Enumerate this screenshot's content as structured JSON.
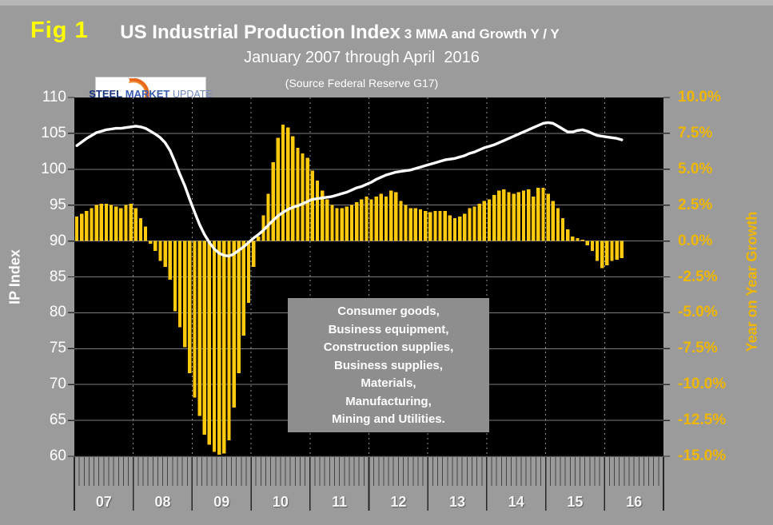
{
  "fig_label": "Fig 1",
  "title": {
    "main": "US Industrial Production Index",
    "suffix": " 3 MMA and Growth Y / Y",
    "date_range": "January 2007 through April  2016",
    "source": "(Source Federal Reserve G17)"
  },
  "logo": {
    "word1": "STEEL",
    "word2": "MARKET",
    "word3": "UPDATE"
  },
  "axes": {
    "left": {
      "label": "IP Index",
      "ticks": [
        "110",
        "105",
        "100",
        "95",
        "90",
        "85",
        "80",
        "75",
        "70",
        "65",
        "60"
      ]
    },
    "right": {
      "label": "Year on Year Growth",
      "ticks": [
        "10.0%",
        "7.5%",
        "5.0%",
        "2.5%",
        "0.0%",
        "-2.5%",
        "-5.0%",
        "-7.5%",
        "-10.0%",
        "-12.5%",
        "-15.0%"
      ]
    },
    "x": {
      "years": [
        "07",
        "08",
        "09",
        "10",
        "11",
        "12",
        "13",
        "14",
        "15",
        "16"
      ]
    }
  },
  "annotation_box": {
    "lines": [
      "Consumer goods,",
      "Business equipment,",
      "Construction supplies,",
      "Business supplies,",
      "Materials,",
      "Manufacturing,",
      "Mining and Utilities."
    ]
  },
  "colors": {
    "background": "#9b9b9b",
    "plot_background": "#000000",
    "bar": "#ffc90e",
    "line": "#ffffff",
    "gridline": "#7d7d7d",
    "year_gridline": "#8f8f8f",
    "right_axis_text": "#efb700",
    "fig_label_text": "#ffff00",
    "tick": "#2e2e2e"
  },
  "chart_data": {
    "type": "combo (bar + line)",
    "x_start": "2007-01",
    "x_end": "2016-04",
    "x_frequency": "monthly",
    "x_axis_span": [
      "2007-01",
      "2016-12"
    ],
    "title": "US Industrial Production Index 3 MMA and Growth Y / Y",
    "left_axis": {
      "label": "IP Index",
      "ylim": [
        60,
        110
      ]
    },
    "right_axis": {
      "label": "Year on Year Growth",
      "ylim": [
        -15.0,
        10.0
      ],
      "unit": "%"
    },
    "grid": "horizontal solid + vertical dashed at year boundaries",
    "series": [
      {
        "name": "Growth Y/Y",
        "type": "bar",
        "axis": "right",
        "unit": "%",
        "values": [
          1.7,
          1.9,
          2.1,
          2.3,
          2.5,
          2.6,
          2.6,
          2.5,
          2.4,
          2.3,
          2.5,
          2.6,
          2.3,
          1.6,
          1.0,
          -0.2,
          -0.7,
          -1.4,
          -1.8,
          -2.7,
          -4.9,
          -6.0,
          -7.4,
          -9.2,
          -10.9,
          -12.2,
          -13.5,
          -14.2,
          -14.7,
          -14.9,
          -14.8,
          -13.9,
          -11.6,
          -9.2,
          -6.6,
          -4.3,
          -1.8,
          0.3,
          1.8,
          3.3,
          5.5,
          7.2,
          8.1,
          7.9,
          7.3,
          6.5,
          6.1,
          5.8,
          4.9,
          4.2,
          3.5,
          2.9,
          2.5,
          2.3,
          2.3,
          2.4,
          2.5,
          2.7,
          2.9,
          3.1,
          2.9,
          3.1,
          3.3,
          3.1,
          3.5,
          3.4,
          2.8,
          2.5,
          2.3,
          2.3,
          2.2,
          2.1,
          2.0,
          2.1,
          2.1,
          2.1,
          1.8,
          1.6,
          1.7,
          1.9,
          2.3,
          2.4,
          2.6,
          2.8,
          2.9,
          3.2,
          3.5,
          3.6,
          3.4,
          3.3,
          3.4,
          3.5,
          3.6,
          3.1,
          3.7,
          3.7,
          3.3,
          2.8,
          2.3,
          1.6,
          0.8,
          0.3,
          0.2,
          0.1,
          -0.3,
          -0.7,
          -1.4,
          -1.9,
          -1.7,
          -1.4,
          -1.3,
          -1.2
        ]
      },
      {
        "name": "IP Index 3 MMA",
        "type": "line",
        "axis": "left",
        "values": [
          103.3,
          103.8,
          104.3,
          104.7,
          105.1,
          105.3,
          105.5,
          105.6,
          105.7,
          105.7,
          105.8,
          105.9,
          106.0,
          105.9,
          105.7,
          105.3,
          104.9,
          104.4,
          103.7,
          102.6,
          101.0,
          99.3,
          97.7,
          95.8,
          94.0,
          92.3,
          90.9,
          89.8,
          88.9,
          88.3,
          88.0,
          87.9,
          88.2,
          88.7,
          89.2,
          89.8,
          90.4,
          90.9,
          91.5,
          92.2,
          92.9,
          93.5,
          94.0,
          94.4,
          94.7,
          94.9,
          95.2,
          95.5,
          95.8,
          95.9,
          96.0,
          96.1,
          96.2,
          96.4,
          96.6,
          96.8,
          97.1,
          97.4,
          97.6,
          97.9,
          98.2,
          98.6,
          98.9,
          99.2,
          99.4,
          99.6,
          99.7,
          99.8,
          99.9,
          100.1,
          100.3,
          100.5,
          100.7,
          100.9,
          101.1,
          101.3,
          101.4,
          101.5,
          101.7,
          101.9,
          102.2,
          102.4,
          102.7,
          103.0,
          103.2,
          103.4,
          103.7,
          104.0,
          104.3,
          104.6,
          104.9,
          105.2,
          105.5,
          105.8,
          106.1,
          106.4,
          106.5,
          106.4,
          106.0,
          105.6,
          105.2,
          105.2,
          105.4,
          105.5,
          105.3,
          105.0,
          104.7,
          104.6,
          104.5,
          104.4,
          104.3,
          104.1
        ]
      }
    ]
  }
}
